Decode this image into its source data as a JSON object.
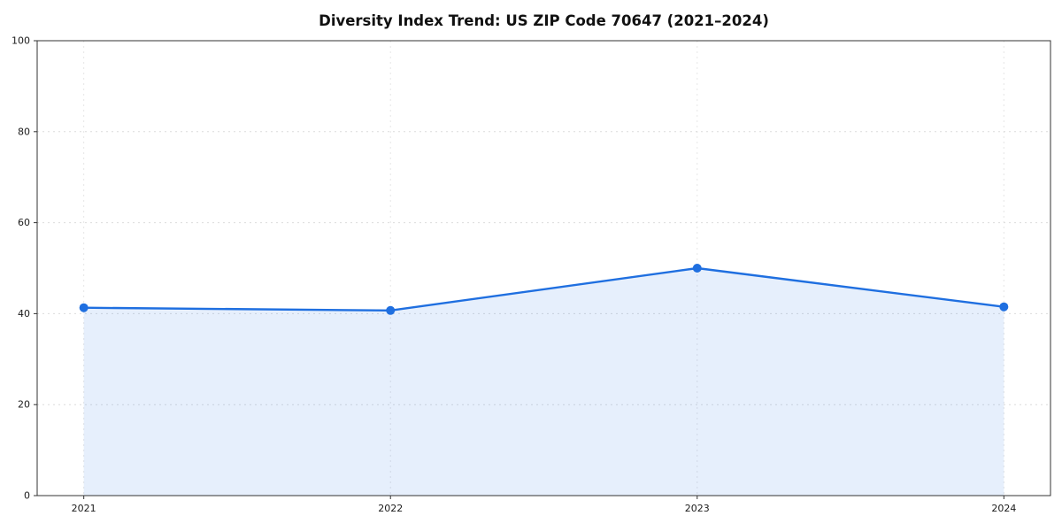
{
  "chart_data": {
    "type": "area",
    "title": "Diversity Index Trend: US ZIP Code 70647 (2021–2024)",
    "categories": [
      "2021",
      "2022",
      "2023",
      "2024"
    ],
    "x": [
      2021,
      2022,
      2023,
      2024
    ],
    "series": [
      {
        "name": "Diversity Index",
        "values": [
          41.3,
          40.7,
          50.0,
          41.5
        ]
      }
    ],
    "xlabel": "",
    "ylabel": "",
    "ylim": [
      0,
      100
    ],
    "yticks": [
      0,
      20,
      40,
      60,
      80,
      100
    ],
    "grid": "dashed",
    "legend": "none",
    "line_color": "#1f6fe0",
    "fill_color": "#1f6fe0",
    "fill_opacity": 0.11,
    "marker": "circle",
    "axis_color": "#333333",
    "grid_color": "#dcdcdc",
    "tick_label_color": "#1a1a1a"
  }
}
